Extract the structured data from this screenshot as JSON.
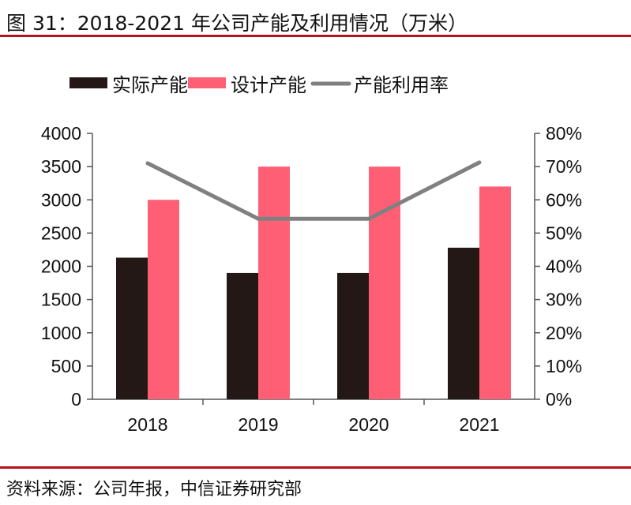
{
  "title": "图 31：2018-2021 年公司产能及利用情况（万米）",
  "source": "资料来源：公司年报，中信证券研究部",
  "colors": {
    "actual": "#231815",
    "design": "#ff5f75",
    "rate": "#808080",
    "rule": "#b5121b"
  },
  "chart_data": {
    "type": "bar",
    "title": "2018-2021 年公司产能及利用情况（万米）",
    "categories": [
      "2018",
      "2019",
      "2020",
      "2021"
    ],
    "series": [
      {
        "name": "实际产能",
        "type": "bar",
        "axis": "left",
        "values": [
          2130,
          1900,
          1900,
          2280
        ]
      },
      {
        "name": "设计产能",
        "type": "bar",
        "axis": "left",
        "values": [
          3000,
          3500,
          3500,
          3200
        ]
      },
      {
        "name": "产能利用率",
        "type": "line",
        "axis": "right",
        "values": [
          0.71,
          0.543,
          0.543,
          0.7125
        ]
      }
    ],
    "ylim": [
      0,
      4000
    ],
    "y_ticks": [
      "0",
      "500",
      "1000",
      "1500",
      "2000",
      "2500",
      "3000",
      "3500",
      "4000"
    ],
    "y2lim": [
      0,
      0.8
    ],
    "y2_ticks": [
      "0%",
      "10%",
      "20%",
      "30%",
      "40%",
      "50%",
      "60%",
      "70%",
      "80%"
    ],
    "legend": "top",
    "grid": false
  }
}
